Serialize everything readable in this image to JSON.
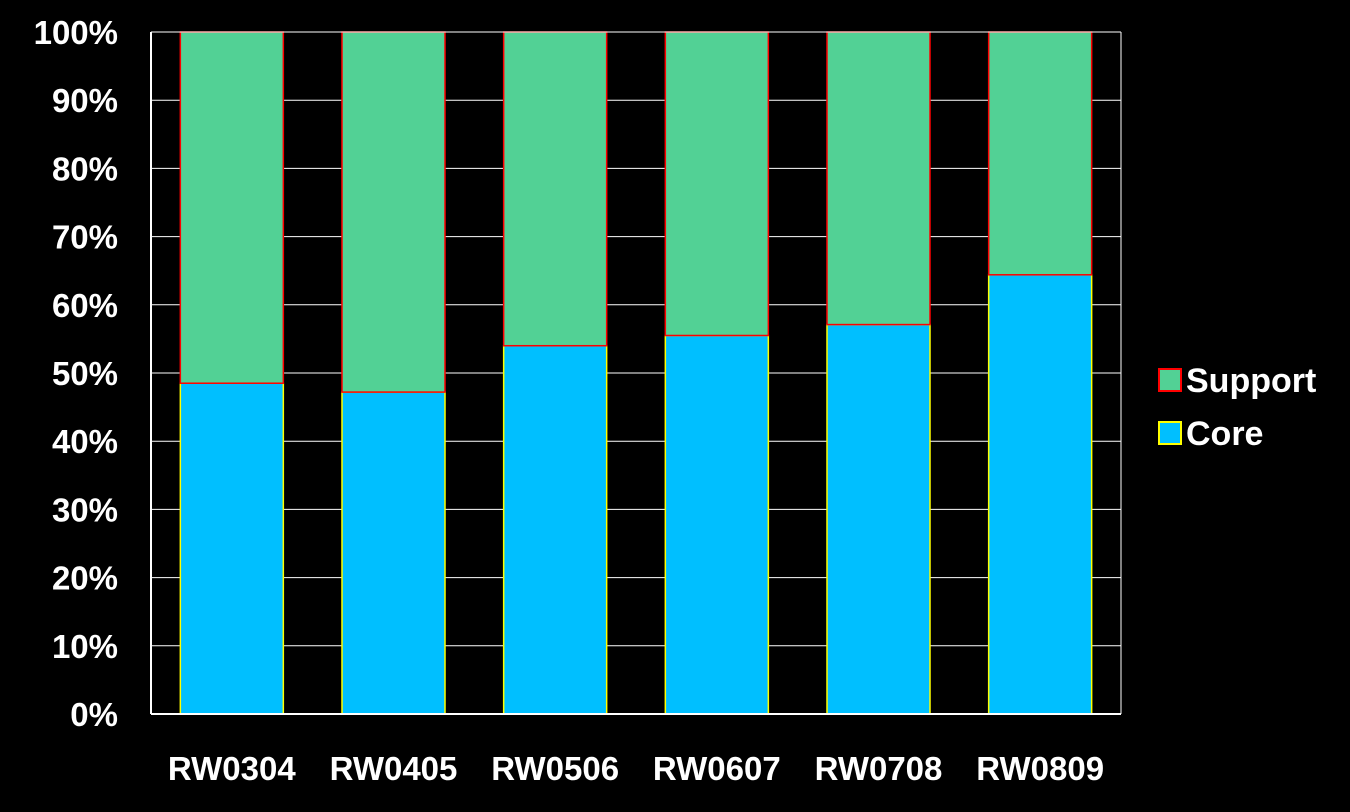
{
  "chart_data": {
    "type": "bar",
    "stacked": true,
    "categories": [
      "RW0304",
      "RW0405",
      "RW0506",
      "RW0607",
      "RW0708",
      "RW0809"
    ],
    "series": [
      {
        "name": "Core",
        "values": [
          48.5,
          47.2,
          54.0,
          55.5,
          57.1,
          64.4
        ],
        "color": "#00bfff",
        "stroke": "#ffff00"
      },
      {
        "name": "Support",
        "values": [
          51.5,
          52.8,
          46.0,
          44.5,
          42.9,
          35.6
        ],
        "color": "#52d195",
        "stroke": "#ff0000"
      }
    ],
    "ylim": [
      0,
      100
    ],
    "yticks": [
      "0%",
      "10%",
      "20%",
      "30%",
      "40%",
      "50%",
      "60%",
      "70%",
      "80%",
      "90%",
      "100%"
    ],
    "grid": true,
    "legend": {
      "position": "right",
      "entries": [
        {
          "label": "Support",
          "color": "#52d195",
          "stroke": "#ff0000"
        },
        {
          "label": "Core",
          "color": "#00bfff",
          "stroke": "#ffff00"
        }
      ]
    },
    "background": "#000000",
    "axis_color": "#ffffff"
  }
}
